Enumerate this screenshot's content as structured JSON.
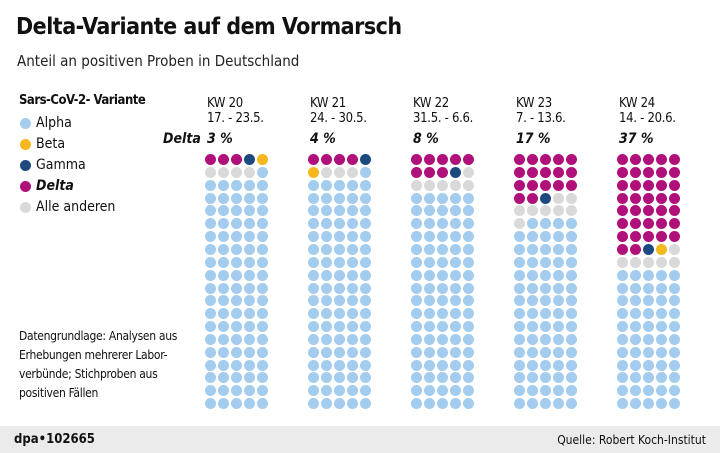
{
  "title": "Delta-Variante auf dem Vormarsch",
  "subtitle": "Anteil an positiven Proben in Deutschland",
  "legend": {
    "title": "Sars-CoV-2- Variante",
    "items": [
      {
        "label": "Alpha",
        "color": "#a3ccee"
      },
      {
        "label": "Beta",
        "color": "#f5b81c"
      },
      {
        "label": "Gamma",
        "color": "#1c4a80"
      },
      {
        "label": "Delta",
        "color": "#b0107a"
      },
      {
        "label": "Alle anderen",
        "color": "#d9d9d9"
      }
    ]
  },
  "delta_label": "Delta",
  "note": "Datengrundlage: Analysen aus Erhebungen mehrerer Labor-verbünde; Stichproben aus positiven Fällen",
  "footer": {
    "brand": "dpa•102665",
    "source": "Quelle: Robert Koch-Institut"
  },
  "chart_data": {
    "type": "waffle",
    "title": "Delta-Variante auf dem Vormarsch",
    "unit": "percent of positive samples",
    "order": [
      "Delta",
      "Gamma",
      "Beta",
      "Alle anderen",
      "Alpha"
    ],
    "weeks": [
      {
        "kw": "KW 20",
        "dates": "17. - 23.5.",
        "delta_label": "3 %",
        "values": {
          "Delta": 3,
          "Gamma": 1,
          "Beta": 1,
          "Alle anderen": 4,
          "Alpha": 91
        }
      },
      {
        "kw": "KW 21",
        "dates": "24. - 30.5.",
        "delta_label": "4 %",
        "values": {
          "Delta": 4,
          "Gamma": 1,
          "Beta": 1,
          "Alle anderen": 3,
          "Alpha": 91
        }
      },
      {
        "kw": "KW 22",
        "dates": "31.5. - 6.6.",
        "delta_label": "8 %",
        "values": {
          "Delta": 8,
          "Gamma": 1,
          "Beta": 0,
          "Alle anderen": 6,
          "Alpha": 85
        }
      },
      {
        "kw": "KW 23",
        "dates": "7. - 13.6.",
        "delta_label": "17 %",
        "values": {
          "Delta": 17,
          "Gamma": 1,
          "Beta": 0,
          "Alle anderen": 8,
          "Alpha": 74
        }
      },
      {
        "kw": "KW 24",
        "dates": "14. - 20.6.",
        "delta_label": "37 %",
        "values": {
          "Delta": 37,
          "Gamma": 1,
          "Beta": 1,
          "Alle anderen": 6,
          "Alpha": 55
        }
      }
    ]
  }
}
